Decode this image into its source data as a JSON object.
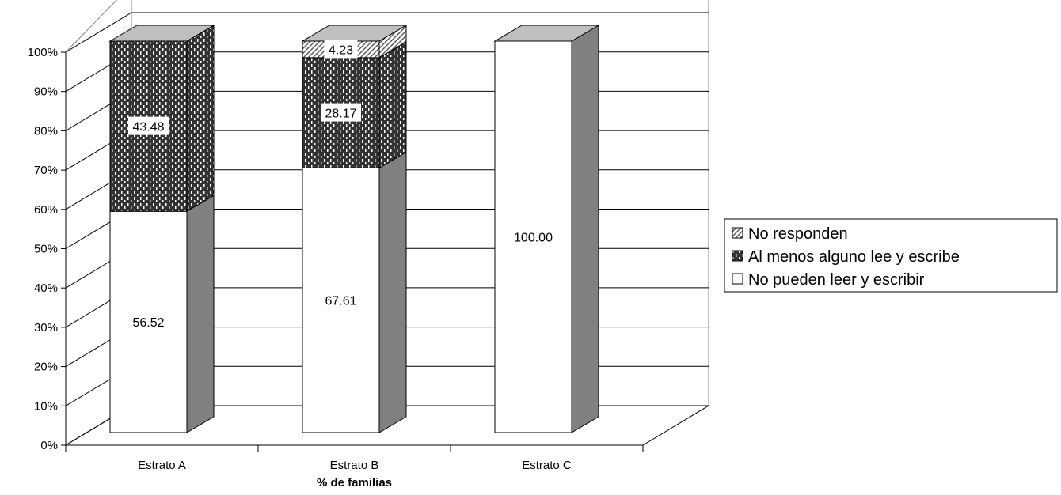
{
  "chart_data": {
    "type": "bar",
    "stacked": true,
    "three_d": true,
    "title": "",
    "xlabel": "% de familias",
    "ylabel": "",
    "ylim": [
      0,
      100
    ],
    "y_ticks": [
      "0%",
      "10%",
      "20%",
      "30%",
      "40%",
      "50%",
      "60%",
      "70%",
      "80%",
      "90%",
      "100%"
    ],
    "categories": [
      "Estrato A",
      "Estrato B",
      "Estrato C"
    ],
    "series": [
      {
        "name": "No pueden leer y escribir",
        "values": [
          56.52,
          67.61,
          100.0
        ],
        "labels": [
          "56.52",
          "67.61",
          "100.00"
        ],
        "color": "#ffffff"
      },
      {
        "name": "Al menos alguno lee y escribe",
        "values": [
          43.48,
          28.17,
          0
        ],
        "labels": [
          "43.48",
          "28.17",
          ""
        ],
        "color": "#333333"
      },
      {
        "name": "No responden",
        "values": [
          0,
          4.23,
          0
        ],
        "labels": [
          "",
          "4.23",
          ""
        ],
        "color": "#d9d9d9"
      }
    ],
    "grid": true,
    "legend_position": "right",
    "side_face_color": "#808080"
  }
}
